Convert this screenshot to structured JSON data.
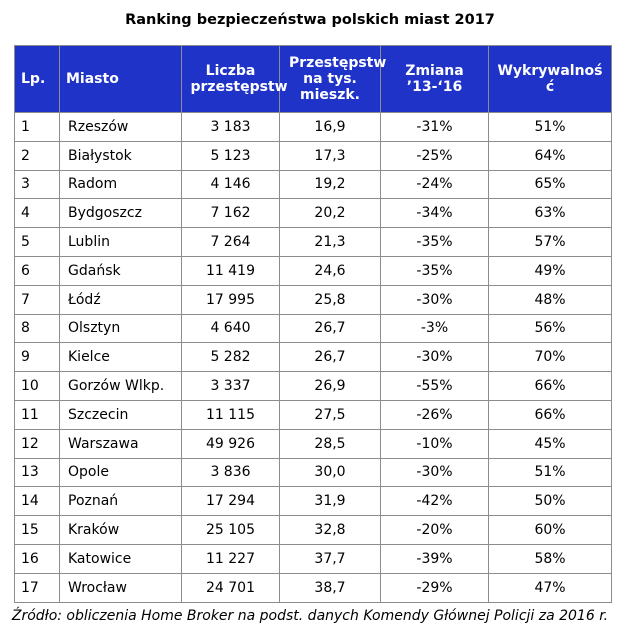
{
  "chart_data": {
    "type": "table",
    "title": "Ranking bezpieczeństwa polskich miast 2017",
    "columns": [
      "Lp.",
      "Miasto",
      "Liczba przestępstw",
      "Przestępstw na tys. mieszk.",
      "Zmiana ’13-‘16",
      "Wykrywalność"
    ],
    "rows": [
      [
        "1",
        "Rzeszów",
        "3 183",
        "16,9",
        "-31%",
        "51%"
      ],
      [
        "2",
        "Białystok",
        "5 123",
        "17,3",
        "-25%",
        "64%"
      ],
      [
        "3",
        "Radom",
        "4 146",
        "19,2",
        "-24%",
        "65%"
      ],
      [
        "4",
        "Bydgoszcz",
        "7 162",
        "20,2",
        "-34%",
        "63%"
      ],
      [
        "5",
        "Lublin",
        "7 264",
        "21,3",
        "-35%",
        "57%"
      ],
      [
        "6",
        "Gdańsk",
        "11 419",
        "24,6",
        "-35%",
        "49%"
      ],
      [
        "7",
        "Łódź",
        "17 995",
        "25,8",
        "-30%",
        "48%"
      ],
      [
        "8",
        "Olsztyn",
        "4 640",
        "26,7",
        "-3%",
        "56%"
      ],
      [
        "9",
        "Kielce",
        "5 282",
        "26,7",
        "-30%",
        "70%"
      ],
      [
        "10",
        "Gorzów Wlkp.",
        "3 337",
        "26,9",
        "-55%",
        "66%"
      ],
      [
        "11",
        "Szczecin",
        "11 115",
        "27,5",
        "-26%",
        "66%"
      ],
      [
        "12",
        "Warszawa",
        "49 926",
        "28,5",
        "-10%",
        "45%"
      ],
      [
        "13",
        "Opole",
        "3 836",
        "30,0",
        "-30%",
        "51%"
      ],
      [
        "14",
        "Poznań",
        "17 294",
        "31,9",
        "-42%",
        "50%"
      ],
      [
        "15",
        "Kraków",
        "25 105",
        "32,8",
        "-20%",
        "60%"
      ],
      [
        "16",
        "Katowice",
        "11 227",
        "37,7",
        "-39%",
        "58%"
      ],
      [
        "17",
        "Wrocław",
        "24 701",
        "38,7",
        "-29%",
        "47%"
      ]
    ],
    "source": "Źródło: obliczenia Home Broker na podst. danych Komendy Głównej Policji za 2016 r.",
    "colors": {
      "header_bg": "#1f33c9",
      "header_text": "#ffffff",
      "border": "#8c8c8c"
    }
  }
}
